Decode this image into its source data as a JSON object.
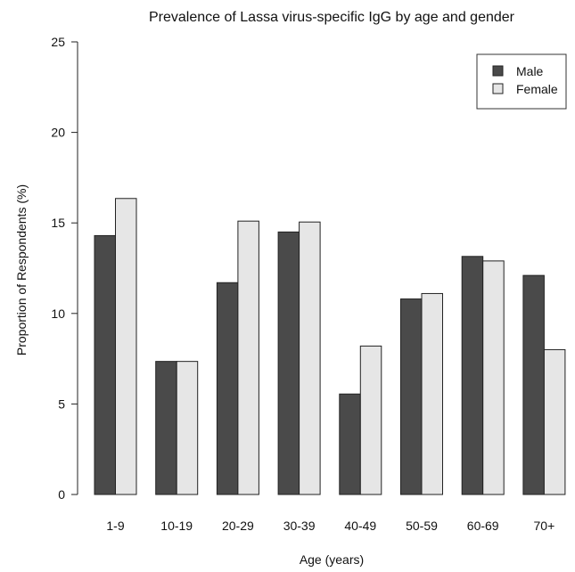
{
  "chart_data": {
    "type": "bar",
    "title": "Prevalence of Lassa virus-specific IgG by age and gender",
    "xlabel": "Age (years)",
    "ylabel": "Proportion of Respondents (%)",
    "categories": [
      "1-9",
      "10-19",
      "20-29",
      "30-39",
      "40-49",
      "50-59",
      "60-69",
      "70+"
    ],
    "series": [
      {
        "name": "Male",
        "values": [
          14.3,
          7.35,
          11.7,
          14.5,
          5.55,
          10.8,
          13.15,
          12.1
        ],
        "color": "#4a4a4a"
      },
      {
        "name": "Female",
        "values": [
          16.35,
          7.35,
          15.1,
          15.05,
          8.2,
          11.1,
          12.9,
          8.0
        ],
        "color": "#e6e6e6"
      }
    ],
    "ylim": [
      0,
      25
    ],
    "yticks": [
      "0",
      "5",
      "10",
      "15",
      "20",
      "25"
    ],
    "legend_position": "top-right",
    "grid": false
  }
}
